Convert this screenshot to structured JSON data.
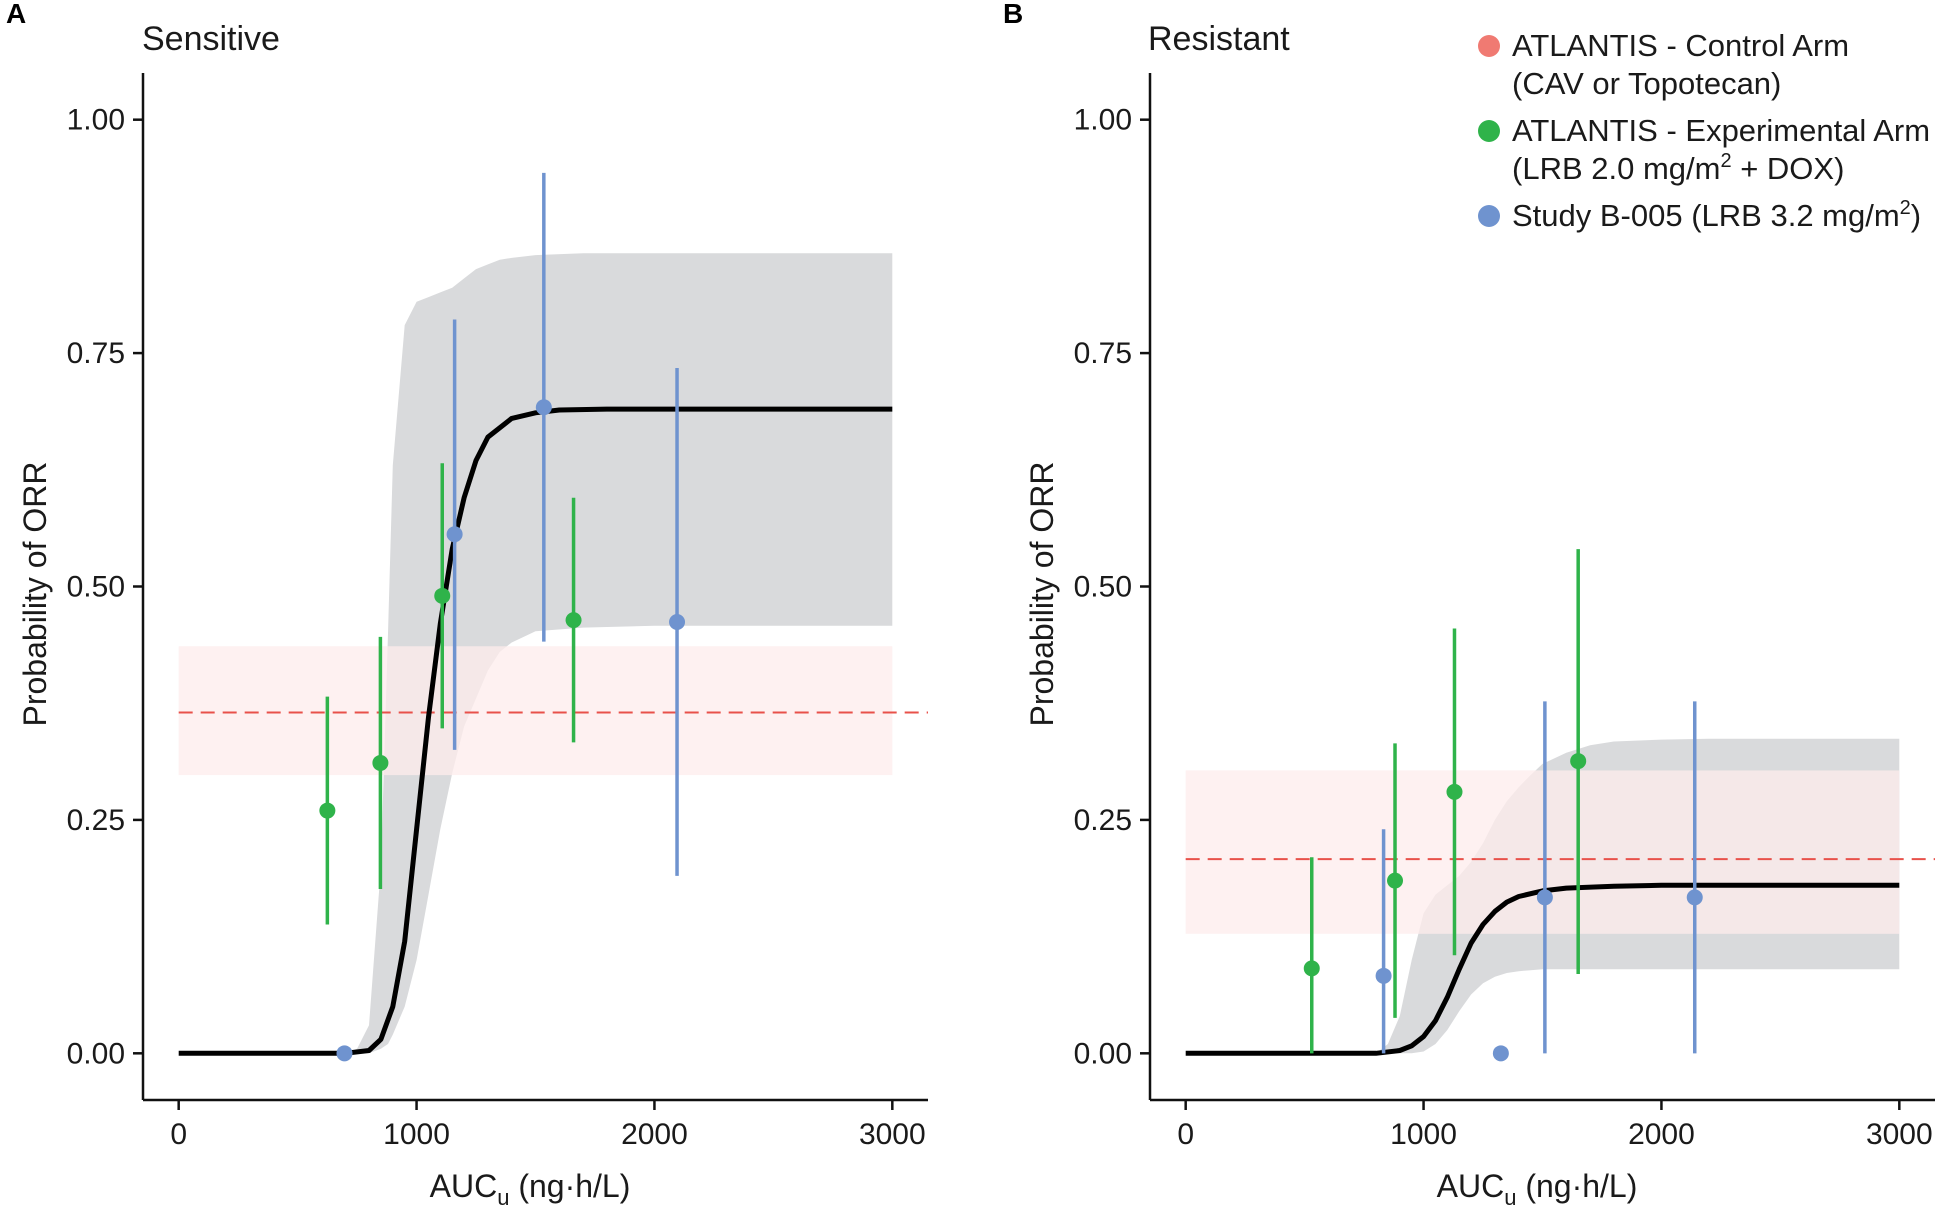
{
  "colors": {
    "control": "#f07a72",
    "experimental": "#2fb34a",
    "study": "#6f93cf",
    "band_gray": "#d9dadc",
    "band_pink": "#fdecec",
    "curve": "#000000",
    "ref_line": "#e8514a"
  },
  "legend": {
    "items": [
      {
        "line1": "ATLANTIS - Control Arm",
        "line2": "(CAV or Topotecan)",
        "color_key": "control"
      },
      {
        "line1": "ATLANTIS - Experimental Arm",
        "line2_pre": "(LRB 2.0 mg/m",
        "line2_sup": "2",
        "line2_post": " + DOX)",
        "color_key": "experimental"
      },
      {
        "line1_pre": "Study B-005 (LRB 3.2 mg/m",
        "line1_sup": "2",
        "line1_post": ")",
        "color_key": "study"
      }
    ]
  },
  "chart_data": [
    {
      "panel_letter": "A",
      "title": "Sensitive",
      "type": "scatter",
      "xlabel_main": "AUC",
      "xlabel_sub": "u",
      "xlabel_rest": " (ng·h/L)",
      "ylabel": "Probability of ORR",
      "xlim": [
        -150,
        3150
      ],
      "ylim": [
        -0.05,
        1.05
      ],
      "xticks": [
        0,
        1000,
        2000,
        3000
      ],
      "xtick_labels": [
        "0",
        "1000",
        "2000",
        "3000"
      ],
      "yticks": [
        0,
        0.25,
        0.5,
        0.75,
        1.0
      ],
      "ytick_labels": [
        "0.00",
        "0.25",
        "0.50",
        "0.75",
        "1.00"
      ],
      "control_ref": {
        "value": 0.365,
        "lower": 0.298,
        "upper": 0.436,
        "x_range": [
          0,
          3000
        ]
      },
      "curve": {
        "x": [
          0,
          700,
          800,
          850,
          900,
          950,
          1000,
          1050,
          1100,
          1150,
          1200,
          1250,
          1300,
          1400,
          1500,
          1600,
          1800,
          2000,
          2500,
          3000
        ],
        "y": [
          0,
          0.0,
          0.003,
          0.015,
          0.05,
          0.12,
          0.24,
          0.36,
          0.46,
          0.54,
          0.595,
          0.635,
          0.66,
          0.68,
          0.686,
          0.689,
          0.69,
          0.69,
          0.69,
          0.69
        ]
      },
      "band": {
        "x": [
          700,
          750,
          800,
          850,
          880,
          900,
          950,
          1000,
          1050,
          1100,
          1150,
          1200,
          1250,
          1300,
          1350,
          1400,
          1500,
          1700,
          2000,
          3000
        ],
        "lower": [
          0,
          0,
          0.0,
          0.005,
          0.01,
          0.02,
          0.05,
          0.1,
          0.17,
          0.24,
          0.3,
          0.35,
          0.38,
          0.41,
          0.43,
          0.44,
          0.452,
          0.456,
          0.458,
          0.458
        ],
        "upper": [
          0,
          0.005,
          0.03,
          0.2,
          0.45,
          0.63,
          0.78,
          0.805,
          0.81,
          0.815,
          0.82,
          0.83,
          0.84,
          0.845,
          0.85,
          0.852,
          0.855,
          0.857,
          0.857,
          0.857
        ]
      },
      "series": [
        {
          "name": "ATLANTIS - Experimental Arm",
          "color_key": "experimental",
          "points": [
            {
              "x": 625,
              "y": 0.26,
              "lo": 0.138,
              "hi": 0.382
            },
            {
              "x": 848,
              "y": 0.311,
              "lo": 0.176,
              "hi": 0.446
            },
            {
              "x": 1108,
              "y": 0.49,
              "lo": 0.348,
              "hi": 0.632
            },
            {
              "x": 1660,
              "y": 0.464,
              "lo": 0.333,
              "hi": 0.595
            }
          ]
        },
        {
          "name": "Study B-005 (LRB 3.2 mg/m2)",
          "color_key": "study",
          "points": [
            {
              "x": 697,
              "y": 0.0,
              "lo": null,
              "hi": null
            },
            {
              "x": 1160,
              "y": 0.556,
              "lo": 0.325,
              "hi": 0.786
            },
            {
              "x": 1535,
              "y": 0.692,
              "lo": 0.441,
              "hi": 0.943
            },
            {
              "x": 2095,
              "y": 0.462,
              "lo": 0.19,
              "hi": 0.734
            }
          ]
        }
      ]
    },
    {
      "panel_letter": "B",
      "title": "Resistant",
      "type": "scatter",
      "xlabel_main": "AUC",
      "xlabel_sub": "u",
      "xlabel_rest": " (ng·h/L)",
      "ylabel": "Probability of ORR",
      "xlim": [
        -150,
        3150
      ],
      "ylim": [
        -0.05,
        1.05
      ],
      "xticks": [
        0,
        1000,
        2000,
        3000
      ],
      "xtick_labels": [
        "0",
        "1000",
        "2000",
        "3000"
      ],
      "yticks": [
        0,
        0.25,
        0.5,
        0.75,
        1.0
      ],
      "ytick_labels": [
        "0.00",
        "0.25",
        "0.50",
        "0.75",
        "1.00"
      ],
      "control_ref": {
        "value": 0.208,
        "lower": 0.128,
        "upper": 0.303,
        "x_range": [
          0,
          3000
        ]
      },
      "curve": {
        "x": [
          0,
          800,
          900,
          950,
          1000,
          1050,
          1100,
          1150,
          1200,
          1250,
          1300,
          1350,
          1400,
          1500,
          1600,
          1800,
          2000,
          2500,
          3000
        ],
        "y": [
          0,
          0.0,
          0.003,
          0.008,
          0.018,
          0.035,
          0.06,
          0.09,
          0.118,
          0.138,
          0.152,
          0.162,
          0.168,
          0.174,
          0.177,
          0.179,
          0.18,
          0.18,
          0.18
        ]
      },
      "band": {
        "x": [
          800,
          850,
          900,
          950,
          1000,
          1050,
          1100,
          1150,
          1200,
          1250,
          1300,
          1350,
          1400,
          1450,
          1500,
          1600,
          1700,
          1800,
          2000,
          2200,
          3000
        ],
        "lower": [
          0,
          0,
          0,
          0,
          0.002,
          0.01,
          0.025,
          0.045,
          0.063,
          0.075,
          0.082,
          0.086,
          0.088,
          0.089,
          0.09,
          0.09,
          0.09,
          0.09,
          0.09,
          0.09,
          0.09
        ],
        "upper": [
          0,
          0.01,
          0.04,
          0.1,
          0.15,
          0.17,
          0.18,
          0.19,
          0.205,
          0.225,
          0.25,
          0.27,
          0.285,
          0.298,
          0.31,
          0.322,
          0.33,
          0.334,
          0.336,
          0.337,
          0.337
        ]
      },
      "series": [
        {
          "name": "ATLANTIS - Experimental Arm",
          "color_key": "experimental",
          "points": [
            {
              "x": 530,
              "y": 0.091,
              "lo": 0.0,
              "hi": 0.21
            },
            {
              "x": 880,
              "y": 0.185,
              "lo": 0.038,
              "hi": 0.332
            },
            {
              "x": 1130,
              "y": 0.28,
              "lo": 0.105,
              "hi": 0.455
            },
            {
              "x": 1650,
              "y": 0.313,
              "lo": 0.085,
              "hi": 0.54
            }
          ]
        },
        {
          "name": "Study B-005 (LRB 3.2 mg/m2)",
          "color_key": "study",
          "points": [
            {
              "x": 832,
              "y": 0.083,
              "lo": 0.0,
              "hi": 0.24
            },
            {
              "x": 1325,
              "y": 0.0,
              "lo": null,
              "hi": null
            },
            {
              "x": 1510,
              "y": 0.167,
              "lo": 0.0,
              "hi": 0.377
            },
            {
              "x": 2140,
              "y": 0.167,
              "lo": 0.0,
              "hi": 0.377
            }
          ]
        }
      ]
    }
  ]
}
